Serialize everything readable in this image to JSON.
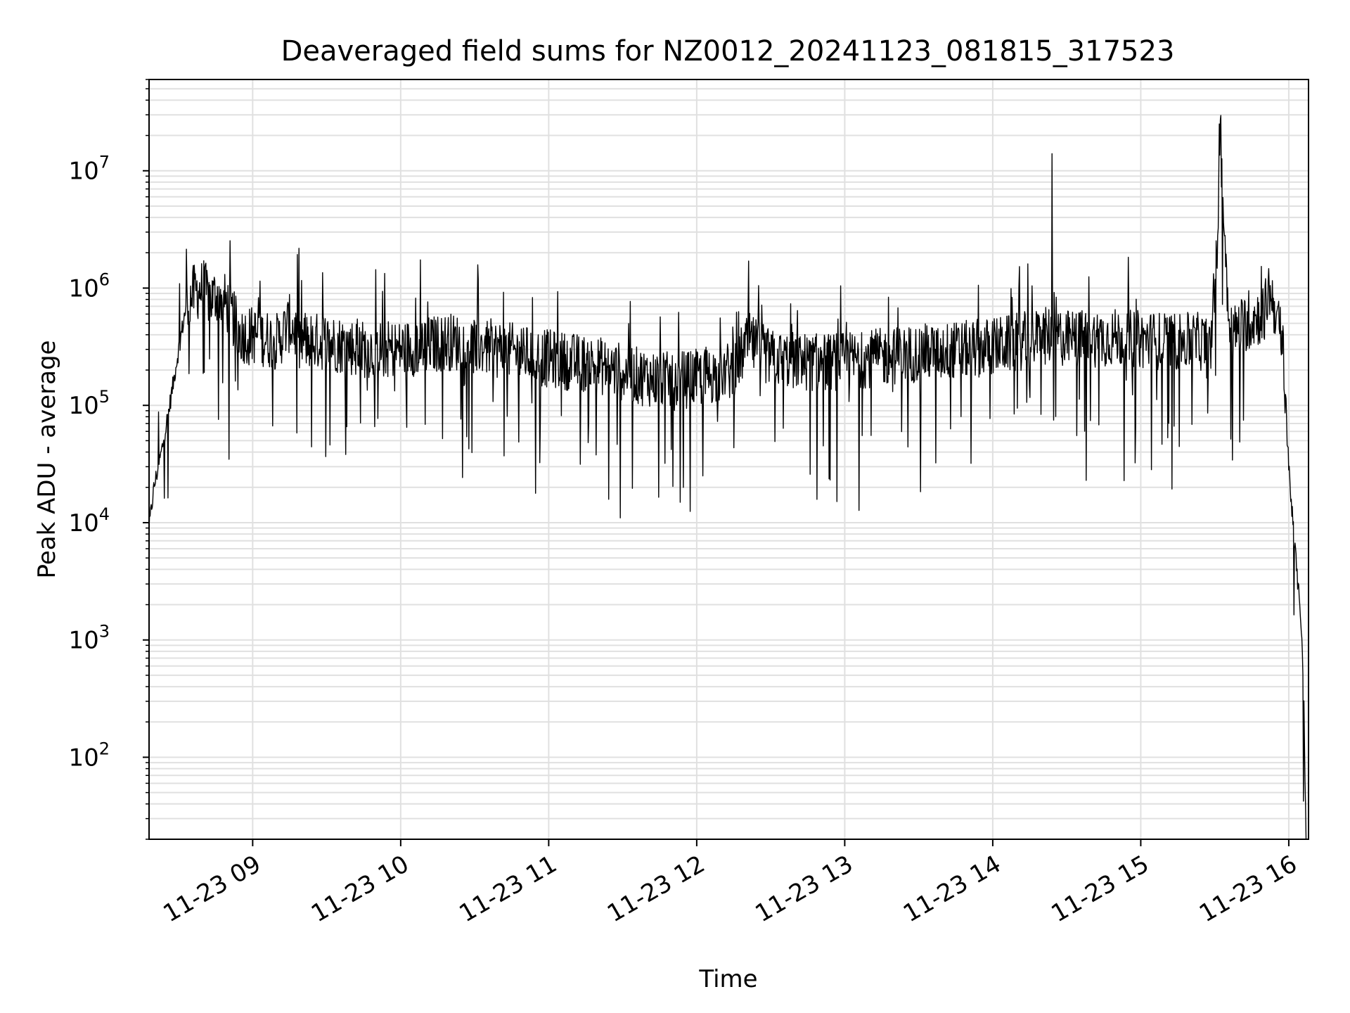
{
  "chart_data": {
    "type": "line",
    "title": "Deaveraged field sums for NZ0012_20241123_081815_317523",
    "xlabel": "Time",
    "ylabel": "Peak ADU - average",
    "yscale": "log",
    "grid": true,
    "grid_minor": true,
    "legend": "none",
    "line_color": "#000000",
    "grid_color": "#e0e0e0",
    "xlim": [
      "2024-11-23 08:18",
      "2024-11-23 16:08"
    ],
    "ylim": [
      20,
      60000000
    ],
    "x_tick_labels": [
      "11-23 09",
      "11-23 10",
      "11-23 11",
      "11-23 12",
      "11-23 13",
      "11-23 14",
      "11-23 15",
      "11-23 16"
    ],
    "y_tick_labels": [
      {
        "base": "10",
        "exp": "2"
      },
      {
        "base": "10",
        "exp": "3"
      },
      {
        "base": "10",
        "exp": "4"
      },
      {
        "base": "10",
        "exp": "5"
      },
      {
        "base": "10",
        "exp": "6"
      },
      {
        "base": "10",
        "exp": "7"
      }
    ],
    "series": [
      {
        "x": [
          "2024-11-23 08:18",
          "2024-11-23 08:20",
          "2024-11-23 08:23",
          "2024-11-23 08:26",
          "2024-11-23 08:30",
          "2024-11-23 08:33",
          "2024-11-23 08:36",
          "2024-11-23 08:40",
          "2024-11-23 08:43",
          "2024-11-23 08:46",
          "2024-11-23 08:50",
          "2024-11-23 08:55",
          "2024-11-23 09:00",
          "2024-11-23 09:10",
          "2024-11-23 09:15",
          "2024-11-23 09:20",
          "2024-11-23 09:30",
          "2024-11-23 09:45",
          "2024-11-23 10:00",
          "2024-11-23 10:20",
          "2024-11-23 10:40",
          "2024-11-23 11:00",
          "2024-11-23 11:20",
          "2024-11-23 11:35",
          "2024-11-23 11:50",
          "2024-11-23 12:00",
          "2024-11-23 12:15",
          "2024-11-23 12:21",
          "2024-11-23 12:30",
          "2024-11-23 12:50",
          "2024-11-23 13:10",
          "2024-11-23 13:30",
          "2024-11-23 13:50",
          "2024-11-23 14:05",
          "2024-11-23 14:20",
          "2024-11-23 14:24",
          "2024-11-23 14:30",
          "2024-11-23 14:50",
          "2024-11-23 15:10",
          "2024-11-23 15:25",
          "2024-11-23 15:28",
          "2024-11-23 15:31",
          "2024-11-23 15:32",
          "2024-11-23 15:33",
          "2024-11-23 15:35",
          "2024-11-23 15:37",
          "2024-11-23 15:42",
          "2024-11-23 15:50",
          "2024-11-23 15:52",
          "2024-11-23 15:55",
          "2024-11-23 15:58",
          "2024-11-23 16:00",
          "2024-11-23 16:02",
          "2024-11-23 16:04",
          "2024-11-23 16:05",
          "2024-11-23 16:06",
          "2024-11-23 16:07"
        ],
        "y": [
          9000,
          20000,
          40000,
          90000,
          300000,
          700000,
          900000,
          1000000,
          800000,
          900000,
          700000,
          400000,
          400000,
          350000,
          500000,
          350000,
          350000,
          300000,
          300000,
          350000,
          300000,
          250000,
          220000,
          180000,
          160000,
          170000,
          200000,
          350000,
          250000,
          230000,
          250000,
          280000,
          300000,
          330000,
          380000,
          400000,
          370000,
          380000,
          350000,
          350000,
          300000,
          2000000,
          25000000,
          8000000,
          1000000,
          400000,
          500000,
          600000,
          1000000,
          600000,
          250000,
          30000,
          8000,
          2500,
          1500,
          400,
          20
        ]
      }
    ]
  }
}
